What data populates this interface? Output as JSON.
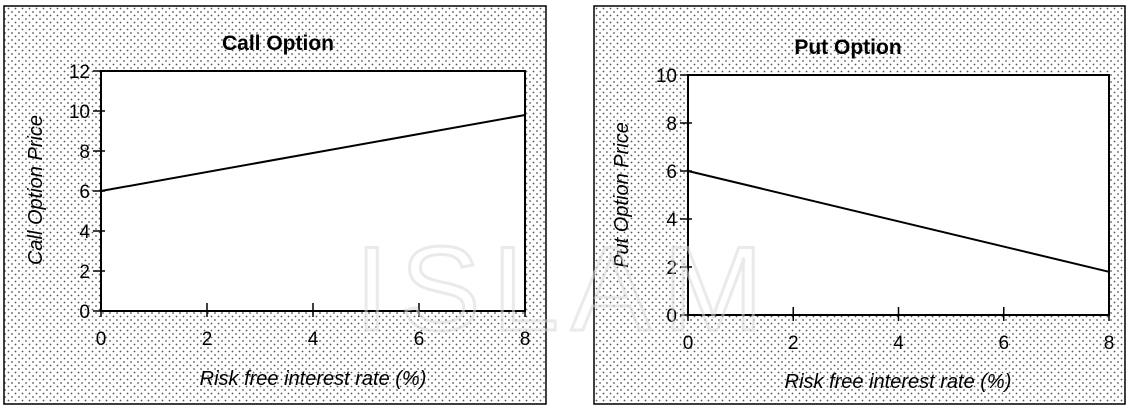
{
  "chart_data": [
    {
      "type": "line",
      "title": "Call Option",
      "xlabel": "Risk free interest rate (%)",
      "ylabel": "Call Option Price",
      "xlim": [
        0,
        8
      ],
      "ylim": [
        0,
        12
      ],
      "x_ticks": [
        0,
        2,
        4,
        6,
        8
      ],
      "y_ticks": [
        0,
        2,
        4,
        6,
        8,
        10,
        12
      ],
      "grid": false,
      "series": [
        {
          "x": [
            0,
            8
          ],
          "y": [
            6,
            9.8
          ]
        }
      ]
    },
    {
      "type": "line",
      "title": "Put Option",
      "xlabel": "Risk free interest rate (%)",
      "ylabel": "Put Option Price",
      "xlim": [
        0,
        8
      ],
      "ylim": [
        0,
        10
      ],
      "x_ticks": [
        0,
        2,
        4,
        6,
        8
      ],
      "y_ticks": [
        0,
        2,
        4,
        6,
        8,
        10
      ],
      "grid": false,
      "series": [
        {
          "x": [
            0,
            8
          ],
          "y": [
            6,
            1.8
          ]
        }
      ]
    }
  ],
  "watermark": {
    "text": "ISLAM"
  }
}
